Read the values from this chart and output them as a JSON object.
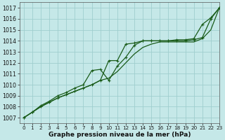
{
  "background_color": "#c5e8e8",
  "grid_color": "#9fcece",
  "line_color": "#1a5c1a",
  "xlabel": "Graphe pression niveau de la mer (hPa)",
  "xlim": [
    -0.5,
    23
  ],
  "ylim": [
    1006.5,
    1017.5
  ],
  "yticks": [
    1007,
    1008,
    1009,
    1010,
    1011,
    1012,
    1013,
    1014,
    1015,
    1016,
    1017
  ],
  "xticks": [
    0,
    1,
    2,
    3,
    4,
    5,
    6,
    7,
    8,
    9,
    10,
    11,
    12,
    13,
    14,
    15,
    16,
    17,
    18,
    19,
    20,
    21,
    22,
    23
  ],
  "series1_y": [
    1007.0,
    1007.5,
    1008.0,
    1008.4,
    1008.8,
    1009.1,
    1009.4,
    1009.7,
    1010.0,
    1010.4,
    1012.2,
    1012.2,
    1013.7,
    1013.8,
    1014.0,
    1014.0,
    1014.0,
    1014.0,
    1014.0,
    1014.0,
    1014.1,
    1014.3,
    1016.0,
    1017.0
  ],
  "series2_y": [
    1007.0,
    1007.5,
    1008.1,
    1008.5,
    1009.0,
    1009.3,
    1009.7,
    1010.0,
    1011.3,
    1011.4,
    1010.4,
    1011.7,
    1012.5,
    1013.6,
    1014.0,
    1014.0,
    1014.0,
    1014.0,
    1014.1,
    1014.1,
    1014.2,
    1015.5,
    1016.1,
    1017.0
  ],
  "series3_y": [
    1007.0,
    1007.5,
    1008.0,
    1008.4,
    1008.8,
    1009.1,
    1009.4,
    1009.7,
    1010.0,
    1010.4,
    1010.6,
    1011.2,
    1012.0,
    1012.8,
    1013.4,
    1013.7,
    1013.9,
    1013.9,
    1013.9,
    1013.9,
    1013.9,
    1014.2,
    1015.0,
    1017.0
  ]
}
